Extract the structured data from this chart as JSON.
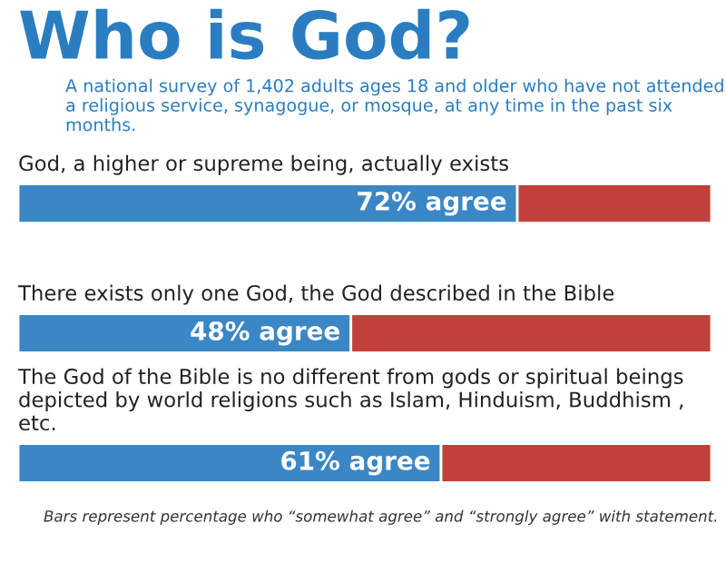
{
  "chart_data": {
    "type": "bar",
    "orientation": "horizontal",
    "stacked": true,
    "title": "Who is God?",
    "subtitle": "A national survey of 1,402 adults ages 18 and older who have not attended a religious service, synagogue, or mosque, at any time in the past six months.",
    "categories": [
      "God, a higher or supreme being, actually exists",
      "There exists only one God, the God described in the Bible",
      "The God of the Bible is no different from gods or spiritual beings depicted by world religions such as Islam, Hinduism, Buddhism , etc."
    ],
    "series": [
      {
        "color": "#3b87c6",
        "values": [
          72,
          48,
          61
        ],
        "value_labels": [
          "72% agree",
          "48% agree",
          "61% agree"
        ]
      },
      {
        "color": "#c0413b",
        "values": [
          28,
          52,
          39
        ]
      }
    ],
    "xlim": [
      0,
      100
    ],
    "annotations": [
      "Bars represent percentage who “somewhat agree” and “strongly agree” with statement."
    ]
  }
}
